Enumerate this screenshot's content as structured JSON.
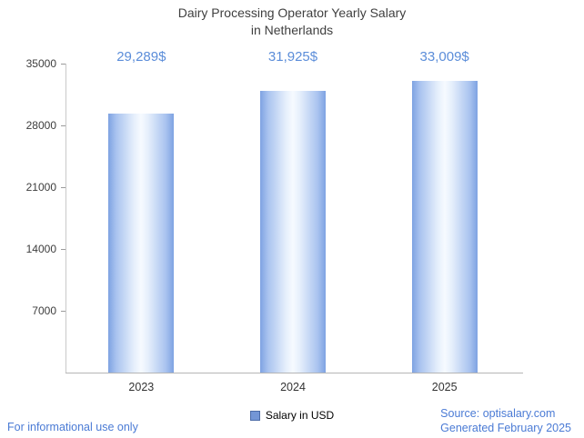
{
  "header": {
    "title_line1": "Dairy Processing Operator Yearly Salary",
    "title_line2": "in Netherlands"
  },
  "chart_data": {
    "type": "bar",
    "title": "Dairy Processing Operator Yearly Salary in Netherlands",
    "categories": [
      "2023",
      "2024",
      "2025"
    ],
    "values": [
      29289,
      31925,
      33009
    ],
    "value_labels": [
      "29,289$",
      "31,925$",
      "33,009$"
    ],
    "series": [
      {
        "name": "Salary in USD",
        "values": [
          29289,
          31925,
          33009
        ]
      }
    ],
    "xlabel": "",
    "ylabel": "",
    "ylim": [
      0,
      35000
    ],
    "yticks": [
      7000,
      14000,
      21000,
      28000,
      35000
    ],
    "grid": false,
    "legend_position": "bottom-center",
    "colors": {
      "bar_edge": "#7ea2e2",
      "bar_center": "#f6faff",
      "value_label": "#5b8dd9",
      "footer_link": "#4b7bd5"
    }
  },
  "legend": {
    "label": "Salary in USD"
  },
  "footer": {
    "left_note": "For informational use only",
    "source": "Source: optisalary.com",
    "generated": "Generated February 2025"
  }
}
